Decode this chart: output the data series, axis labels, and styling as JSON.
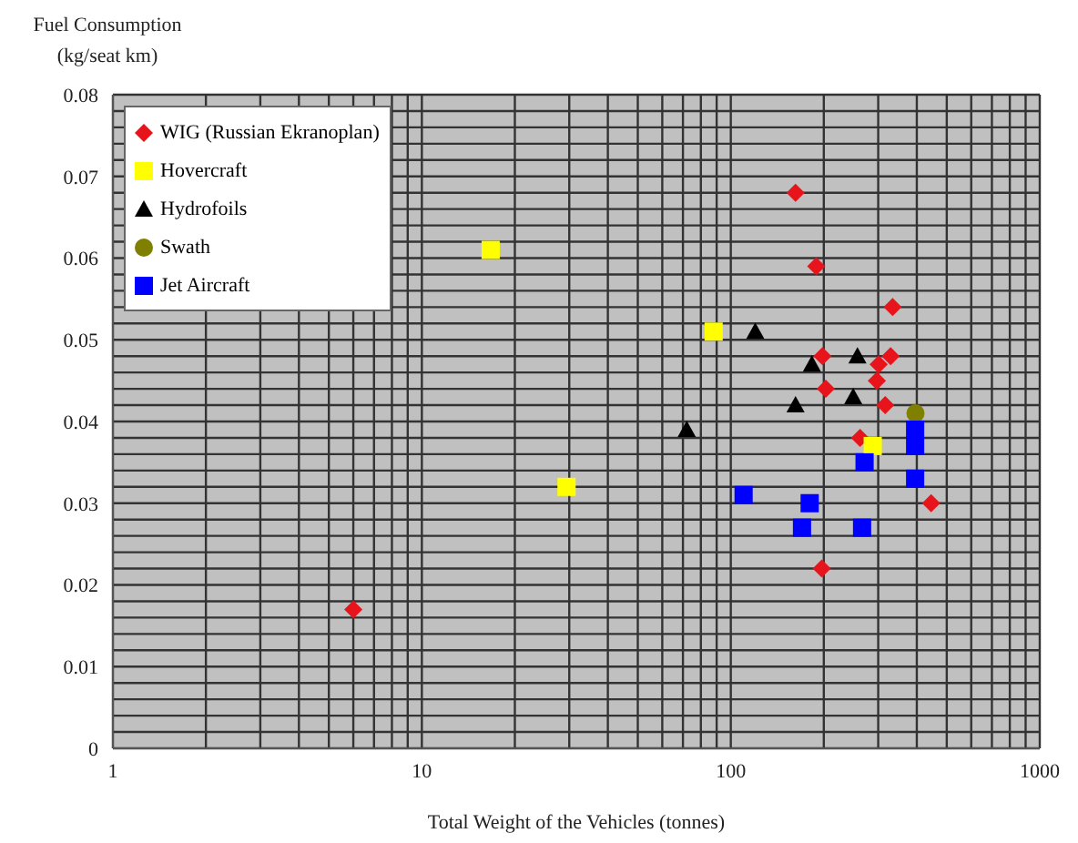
{
  "chart_data": {
    "type": "scatter",
    "xlabel": "Total Weight of the Vehicles (tonnes)",
    "ylabel": "Fuel Consumption (kg/seat km)",
    "log": "x",
    "xlim": [
      1,
      1000
    ],
    "xticks": [
      1,
      {
        "value": 2,
        "label": null
      },
      {
        "value": 3,
        "label": null
      },
      {
        "value": 4,
        "label": null
      },
      {
        "value": 5,
        "label": null
      },
      {
        "value": 6,
        "label": null
      },
      {
        "value": 7,
        "label": null
      },
      {
        "value": 8,
        "label": null
      },
      {
        "value": 9,
        "label": null
      },
      10,
      {
        "value": 20,
        "label": null
      },
      {
        "value": 30,
        "label": null
      },
      {
        "value": 40,
        "label": null
      },
      {
        "value": 50,
        "label": null
      },
      {
        "value": 60,
        "label": null
      },
      {
        "value": 70,
        "label": null
      },
      {
        "value": 80,
        "label": null
      },
      {
        "value": 90,
        "label": null
      },
      100,
      {
        "value": 200,
        "label": null
      },
      {
        "value": 300,
        "label": null
      },
      {
        "value": 400,
        "label": null
      },
      {
        "value": 500,
        "label": null
      },
      {
        "value": 600,
        "label": null
      },
      {
        "value": 700,
        "label": null
      },
      {
        "value": 800,
        "label": null
      },
      {
        "value": 900,
        "label": null
      },
      1000
    ],
    "ylim": [
      0,
      0.08
    ],
    "yticks": [
      0,
      {
        "value": 0.002,
        "label": null
      },
      {
        "value": 0.004,
        "label": null
      },
      {
        "value": 0.006,
        "label": null
      },
      {
        "value": 0.008,
        "label": null
      },
      0.01,
      {
        "value": 0.012,
        "label": null
      },
      {
        "value": 0.014,
        "label": null
      },
      {
        "value": 0.016,
        "label": null
      },
      {
        "value": 0.018,
        "label": null
      },
      0.02,
      {
        "value": 0.022,
        "label": null
      },
      {
        "value": 0.024,
        "label": null
      },
      {
        "value": 0.026,
        "label": null
      },
      {
        "value": 0.028,
        "label": null
      },
      0.03,
      {
        "value": 0.032,
        "label": null
      },
      {
        "value": 0.034,
        "label": null
      },
      {
        "value": 0.036,
        "label": null
      },
      {
        "value": 0.038,
        "label": null
      },
      0.04,
      {
        "value": 0.042,
        "label": null
      },
      {
        "value": 0.044,
        "label": null
      },
      {
        "value": 0.046,
        "label": null
      },
      {
        "value": 0.048,
        "label": null
      },
      0.05,
      {
        "value": 0.052,
        "label": null
      },
      {
        "value": 0.054,
        "label": null
      },
      {
        "value": 0.056,
        "label": null
      },
      {
        "value": 0.058,
        "label": null
      },
      0.06,
      {
        "value": 0.062,
        "label": null
      },
      {
        "value": 0.064,
        "label": null
      },
      {
        "value": 0.066,
        "label": null
      },
      {
        "value": 0.068,
        "label": null
      },
      0.07,
      {
        "value": 0.072,
        "label": null
      },
      {
        "value": 0.074,
        "label": null
      },
      {
        "value": 0.076,
        "label": null
      },
      {
        "value": 0.078,
        "label": null
      },
      0.08
    ],
    "grid": true,
    "legend": "top left",
    "series": [
      {
        "name": "WIG (Russian Ekranoplan)",
        "color": "#e8141c",
        "marker": "diamond",
        "x": [
          6,
          162,
          189,
          334,
          198,
          329,
          301,
          297,
          203,
          316,
          262,
          445,
          197
        ],
        "values": [
          0.017,
          0.068,
          0.059,
          0.054,
          0.048,
          0.048,
          0.047,
          0.045,
          0.044,
          0.042,
          0.038,
          0.03,
          0.022
        ]
      },
      {
        "name": "Hovercraft",
        "color": "#ffff00",
        "marker": "square",
        "x": [
          16.7,
          29.4,
          88,
          288
        ],
        "values": [
          0.061,
          0.032,
          0.051,
          0.037
        ]
      },
      {
        "name": "Hydrofoils",
        "color": "#000000",
        "marker": "triangle",
        "x": [
          120,
          183,
          257,
          162,
          249,
          72
        ],
        "values": [
          0.051,
          0.047,
          0.048,
          0.042,
          0.043,
          0.039
        ]
      },
      {
        "name": "Swath",
        "color": "#808000",
        "marker": "circle",
        "x": [
          396
        ],
        "values": [
          0.041
        ]
      },
      {
        "name": "Jet Aircraft",
        "color": "#0000ff",
        "marker": "square",
        "x": [
          395,
          395,
          271,
          395,
          110,
          180,
          170,
          266
        ],
        "values": [
          0.039,
          0.037,
          0.035,
          0.033,
          0.031,
          0.03,
          0.027,
          0.027
        ]
      }
    ]
  }
}
